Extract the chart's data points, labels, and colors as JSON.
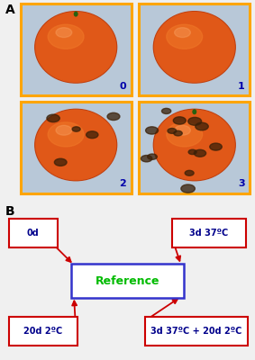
{
  "panel_a_label": "A",
  "panel_b_label": "B",
  "orange_numbers": [
    "0",
    "1",
    "2",
    "3"
  ],
  "reference_text": "Reference",
  "reference_color": "#00bb00",
  "reference_box_edgecolor": "#3333cc",
  "reference_box_facecolor": "#ffffff",
  "corner_labels": [
    "0d",
    "3d 37ºC",
    "20d 2ºC",
    "3d 37ºC + 20d 2ºC"
  ],
  "corner_text_color": "#00008B",
  "corner_box_edgecolor": "#cc0000",
  "corner_box_facecolor": "#ffffff",
  "arrow_color": "#cc0000",
  "photo_border_color": "#FFA500",
  "photo_bg_color": "#b8c8d8",
  "number_color": "#0000aa",
  "background_color": "#f0f0f0",
  "orange_base_color": "#E05818",
  "orange_highlight_color": "#F07828",
  "orange_shadow_color": "#C04010",
  "spot_color": "#3a2008"
}
